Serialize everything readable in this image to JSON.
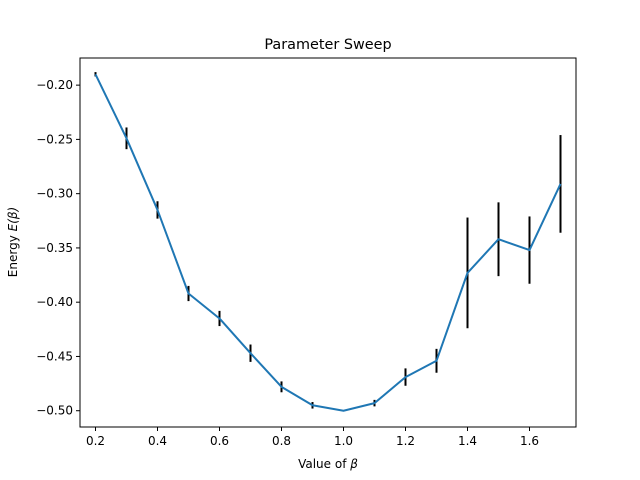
{
  "chart_data": {
    "type": "line",
    "title": "Parameter Sweep",
    "xlabel_prefix": "Value of ",
    "xlabel_symbol": "β",
    "ylabel_prefix": "Energy ",
    "ylabel_symbol": "E(β)",
    "xlim": [
      0.15,
      1.75
    ],
    "ylim": [
      -0.515,
      -0.175
    ],
    "xticks": [
      0.2,
      0.4,
      0.6,
      0.8,
      1.0,
      1.2,
      1.4,
      1.6
    ],
    "xtick_labels": [
      "0.2",
      "0.4",
      "0.6",
      "0.8",
      "1.0",
      "1.2",
      "1.4",
      "1.6"
    ],
    "yticks": [
      -0.2,
      -0.25,
      -0.3,
      -0.35,
      -0.4,
      -0.45,
      -0.5
    ],
    "ytick_labels": [
      "−0.20",
      "−0.25",
      "−0.30",
      "−0.35",
      "−0.40",
      "−0.45",
      "−0.50"
    ],
    "grid": false,
    "line_color": "#1f77b4",
    "errorbar_color": "#000000",
    "series": [
      {
        "x": [
          0.2,
          0.3,
          0.4,
          0.5,
          0.6,
          0.7,
          0.8,
          0.9,
          1.0,
          1.1,
          1.2,
          1.3,
          1.4,
          1.5,
          1.6,
          1.7
        ],
        "y": [
          -0.19,
          -0.249,
          -0.315,
          -0.392,
          -0.415,
          -0.447,
          -0.478,
          -0.495,
          -0.5,
          -0.493,
          -0.469,
          -0.454,
          -0.373,
          -0.342,
          -0.352,
          -0.291
        ],
        "yerr": [
          0.002,
          0.01,
          0.008,
          0.007,
          0.007,
          0.008,
          0.005,
          0.003,
          0.0,
          0.003,
          0.008,
          0.011,
          0.051,
          0.034,
          0.031,
          0.045
        ]
      }
    ]
  }
}
